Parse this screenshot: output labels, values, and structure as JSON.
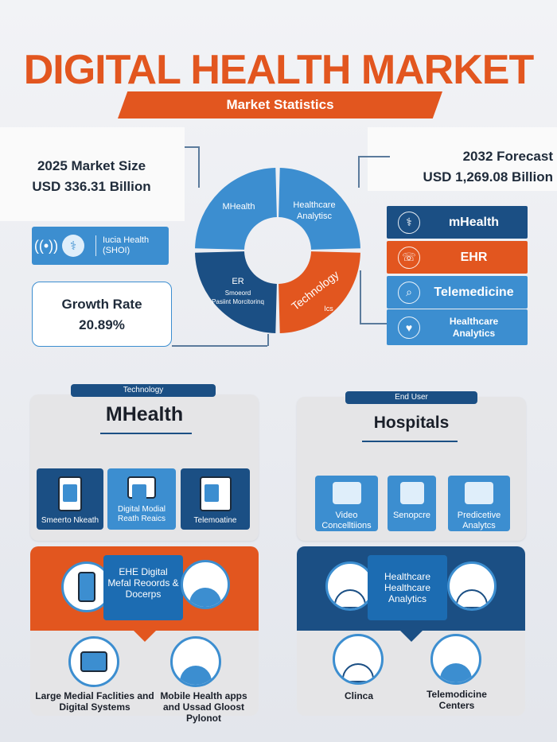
{
  "header": {
    "title": "DIGITAL HEALTH MARKET",
    "subtitle": "Market Statistics"
  },
  "stats": {
    "market_size_label": "2025 Market Size",
    "market_size_value": "USD 336.31 Billion",
    "forecast_label": "2032 Forecast",
    "forecast_value": "USD 1,269.08 Billion",
    "growth_label": "Growth Rate",
    "growth_value": "20.89%"
  },
  "icon_bar": {
    "label_line1": "Iucia Health",
    "label_line2": "(SHOI)"
  },
  "donut": {
    "segments": [
      {
        "line1": "MHealth",
        "line2": "",
        "color": "#3c8ed0"
      },
      {
        "line1": "Healthcare",
        "line2": "Analytisc",
        "color": "#3c8ed0"
      },
      {
        "line1": "Technology",
        "line2": "Ics",
        "color": "#e2561f"
      },
      {
        "line1": "ER",
        "line2": "Smoeord",
        "line3": "Pasiint Morcitorinq",
        "color": "#1b4f84"
      }
    ]
  },
  "right_list": [
    {
      "label": "mHealth",
      "color": "#1b4f84",
      "icon": "caduceus-icon"
    },
    {
      "label": "EHR",
      "color": "#e2561f",
      "icon": "ehr-icon"
    },
    {
      "label": "Telemedicine",
      "color": "#3c8ed0",
      "icon": "telemedicine-icon"
    },
    {
      "label": "Healthcare Analytics",
      "color": "#3c8ed0",
      "icon": "analytics-icon"
    }
  ],
  "technology_card": {
    "pill": "Technology",
    "title": "MHealth",
    "tiles": [
      {
        "caption": "Smeerto Nkeath",
        "color": "#1b4f84"
      },
      {
        "caption": "Digital Modial Reath Reaics",
        "color": "#3c8ed0"
      },
      {
        "caption": "Telemoatine",
        "color": "#1b4f84"
      }
    ]
  },
  "end_user_card": {
    "pill": "End User",
    "title": "Hospitals",
    "tiles": [
      {
        "caption": "Video Concelltiions"
      },
      {
        "caption": "Senopcre"
      },
      {
        "caption": "Predicetive Analytcs"
      }
    ]
  },
  "orange_panel": {
    "center_text": "EHE Digital Mefal Reoords & Docerps",
    "caption_left": "Large Medial Faclities and Digital Systems",
    "caption_right": "Mobile Health apps and Ussad Gloost Pylonot"
  },
  "blue_panel": {
    "center_text": "Healthcare Healthcare Analytics",
    "caption_left": "Clinca",
    "caption_right": "Telemodicine Centers"
  }
}
